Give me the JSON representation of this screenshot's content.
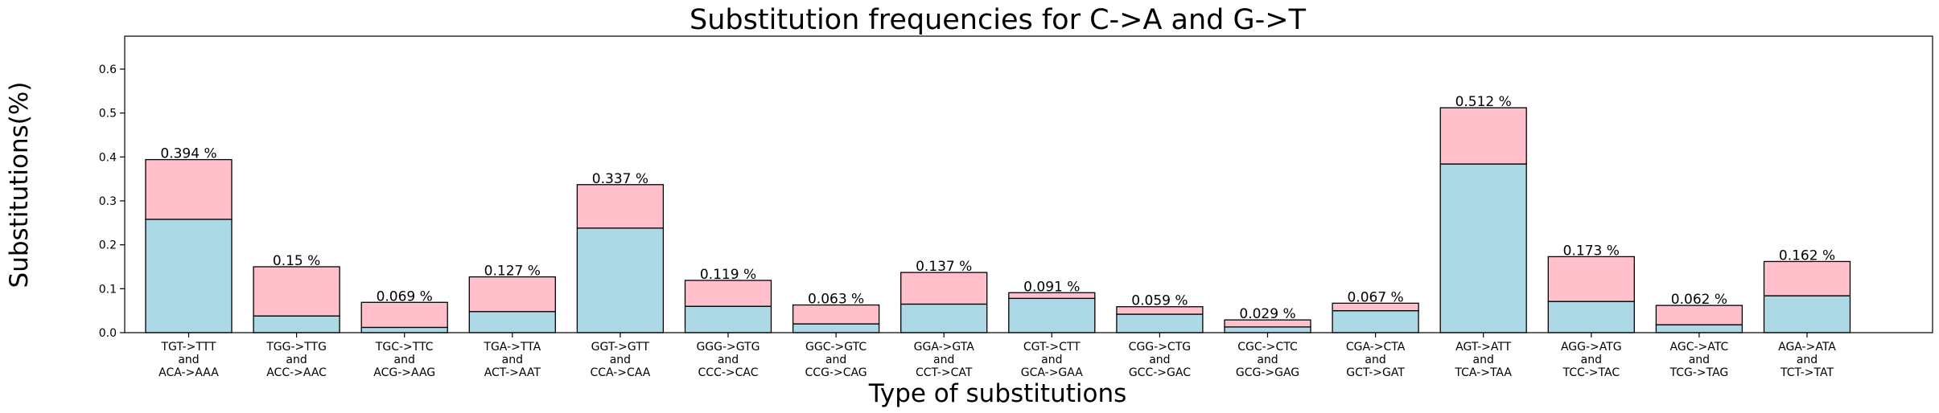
{
  "chart_data": {
    "type": "bar",
    "stacked": true,
    "title": "Substitution frequencies for C->A and G->T",
    "xlabel": "Type of substitutions",
    "ylabel": "Substitutions(%)",
    "ylim": [
      0,
      0.675
    ],
    "yticks": [
      "0.0",
      "0.1",
      "0.2",
      "0.3",
      "0.4",
      "0.5",
      "0.6"
    ],
    "grid": false,
    "categories": [
      [
        "TGT->TTT",
        "and",
        "ACA->AAA"
      ],
      [
        "TGG->TTG",
        "and",
        "ACC->AAC"
      ],
      [
        "TGC->TTC",
        "and",
        "ACG->AAG"
      ],
      [
        "TGA->TTA",
        "and",
        "ACT->AAT"
      ],
      [
        "GGT->GTT",
        "and",
        "CCA->CAA"
      ],
      [
        "GGG->GTG",
        "and",
        "CCC->CAC"
      ],
      [
        "GGC->GTC",
        "and",
        "CCG->CAG"
      ],
      [
        "GGA->GTA",
        "and",
        "CCT->CAT"
      ],
      [
        "CGT->CTT",
        "and",
        "GCA->GAA"
      ],
      [
        "CGG->CTG",
        "and",
        "GCC->GAC"
      ],
      [
        "CGC->CTC",
        "and",
        "GCG->GAG"
      ],
      [
        "CGA->CTA",
        "and",
        "GCT->GAT"
      ],
      [
        "AGT->ATT",
        "and",
        "TCA->TAA"
      ],
      [
        "AGG->ATG",
        "and",
        "TCC->TAC"
      ],
      [
        "AGC->ATC",
        "and",
        "TCG->TAG"
      ],
      [
        "AGA->ATA",
        "and",
        "TCT->TAT"
      ]
    ],
    "series": [
      {
        "color": "#add8e6",
        "values": [
          0.258,
          0.038,
          0.012,
          0.048,
          0.238,
          0.06,
          0.02,
          0.065,
          0.078,
          0.042,
          0.013,
          0.05,
          0.384,
          0.071,
          0.018,
          0.084
        ]
      },
      {
        "color": "#ffc0cb",
        "values": [
          0.136,
          0.112,
          0.057,
          0.079,
          0.099,
          0.059,
          0.043,
          0.072,
          0.013,
          0.017,
          0.016,
          0.017,
          0.128,
          0.102,
          0.044,
          0.078
        ]
      }
    ],
    "totals": [
      0.394,
      0.15,
      0.069,
      0.127,
      0.337,
      0.119,
      0.063,
      0.137,
      0.091,
      0.059,
      0.029,
      0.067,
      0.512,
      0.173,
      0.062,
      0.162
    ],
    "total_labels": [
      "0.394 %",
      "0.15 %",
      "0.069 %",
      "0.127 %",
      "0.337 %",
      "0.119 %",
      "0.063 %",
      "0.137 %",
      "0.091 %",
      "0.059 %",
      "0.029 %",
      "0.067 %",
      "0.512 %",
      "0.173 %",
      "0.062 %",
      "0.162 %"
    ]
  }
}
